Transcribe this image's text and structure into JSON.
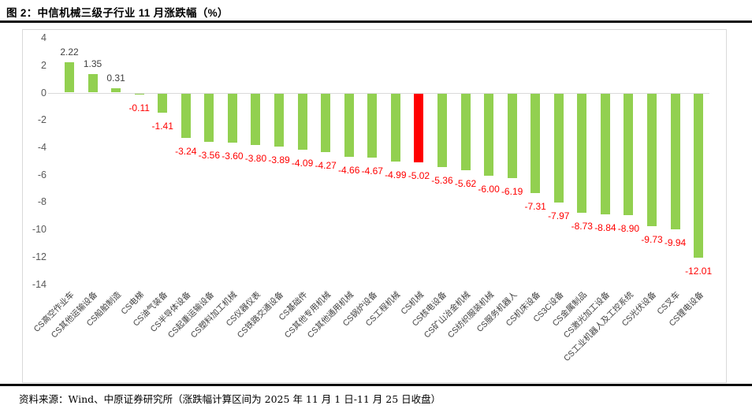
{
  "figure": {
    "title": "图 2：中信机械三级子行业 11 月涨跌幅（%）",
    "source_note": "资料来源：Wind、中原证券研究所（涨跌幅计算区间为 2025 年 11 月 1 日-11 月 25 日收盘）"
  },
  "colors": {
    "bar_default": "#92D050",
    "bar_highlight": "#FF0000",
    "value_label_positive": "#404040",
    "value_label_negative": "#FF0000",
    "axis_text": "#595959",
    "axis_line": "#D9D9D9",
    "rule": "#0D0D0D"
  },
  "chart_data": {
    "type": "bar",
    "title": "中信机械三级子行业 11 月涨跌幅（%）",
    "xlabel": "",
    "ylabel": "",
    "ylim": [
      -14,
      4
    ],
    "yticks": [
      4,
      2,
      0,
      -2,
      -4,
      -6,
      -8,
      -10,
      -12,
      -14
    ],
    "grid": false,
    "legend": false,
    "value_labels_shown": true,
    "highlight_category": "CS机械",
    "categories": [
      "CS高空作业车",
      "CS其他运输设备",
      "CS船舶制造",
      "CS电梯",
      "CS油气装备",
      "CS半导体设备",
      "CS起重运输设备",
      "CS塑料加工机械",
      "CS仪器仪表",
      "CS铁路交通设备",
      "CS基础件",
      "CS其他专用机械",
      "CS其他通用机械",
      "CS锅炉设备",
      "CS工程机械",
      "CS机械",
      "CS核电设备",
      "CS矿山冶金机械",
      "CS纺织服装机械",
      "CS服务机器人",
      "CS机床设备",
      "CS3C设备",
      "CS金属制品",
      "CS激光加工设备",
      "CS工业机器人及工控系统",
      "CS光伏设备",
      "CS叉车",
      "CS锂电设备"
    ],
    "values": [
      2.22,
      1.35,
      0.31,
      -0.11,
      -1.41,
      -3.24,
      -3.56,
      -3.6,
      -3.8,
      -3.89,
      -4.09,
      -4.27,
      -4.66,
      -4.67,
      -4.99,
      -5.02,
      -5.36,
      -5.62,
      -6.0,
      -6.19,
      -7.31,
      -7.97,
      -8.73,
      -8.84,
      -8.9,
      -9.73,
      -9.94,
      -12.01
    ]
  }
}
